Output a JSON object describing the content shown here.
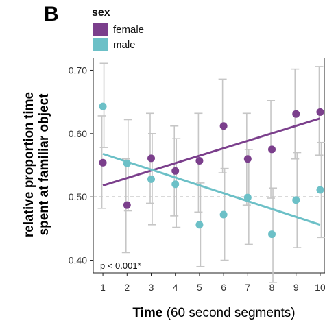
{
  "chart_data": {
    "type": "scatter",
    "panel_label": "B",
    "legend": {
      "title": "sex",
      "placement": "top"
    },
    "xlabel_bold": "Time",
    "xlabel_rest": "(60 second segments)",
    "ylabel_line1": "relative proportion time",
    "ylabel_line2": "spent at familiar object",
    "x": [
      1,
      2,
      3,
      4,
      5,
      6,
      7,
      8,
      9,
      10
    ],
    "xlim": [
      0.6,
      10.2
    ],
    "ylim": [
      0.38,
      0.72
    ],
    "x_ticks": [
      "1",
      "2",
      "3",
      "4",
      "5",
      "6",
      "7",
      "8",
      "9",
      "10"
    ],
    "y_ticks": [
      "0.40",
      "0.50",
      "0.60",
      "0.70"
    ],
    "y_tick_values": [
      0.4,
      0.5,
      0.6,
      0.7
    ],
    "reference_line": 0.5,
    "annotation": "p < 0.001*",
    "series": [
      {
        "name": "female",
        "color": "#7b3f8c",
        "values": [
          0.554,
          0.487,
          0.561,
          0.541,
          0.557,
          0.612,
          0.56,
          0.575,
          0.631,
          0.634
        ],
        "ci_low": [
          0.482,
          0.412,
          0.49,
          0.47,
          0.476,
          0.538,
          0.487,
          0.498,
          0.56,
          0.566
        ],
        "ci_high": [
          0.628,
          0.56,
          0.632,
          0.612,
          0.632,
          0.686,
          0.632,
          0.652,
          0.702,
          0.706
        ],
        "fit": [
          0.518,
          0.624
        ]
      },
      {
        "name": "male",
        "color": "#6cc0c7",
        "values": [
          0.643,
          0.553,
          0.528,
          0.52,
          0.456,
          0.472,
          0.499,
          0.441,
          0.495,
          0.511
        ],
        "ci_low": [
          0.578,
          0.478,
          0.456,
          0.452,
          0.39,
          0.4,
          0.425,
          0.365,
          0.42,
          0.436
        ],
        "ci_high": [
          0.711,
          0.622,
          0.6,
          0.592,
          0.522,
          0.545,
          0.575,
          0.514,
          0.57,
          0.586
        ],
        "fit": [
          0.568,
          0.456
        ]
      }
    ]
  }
}
